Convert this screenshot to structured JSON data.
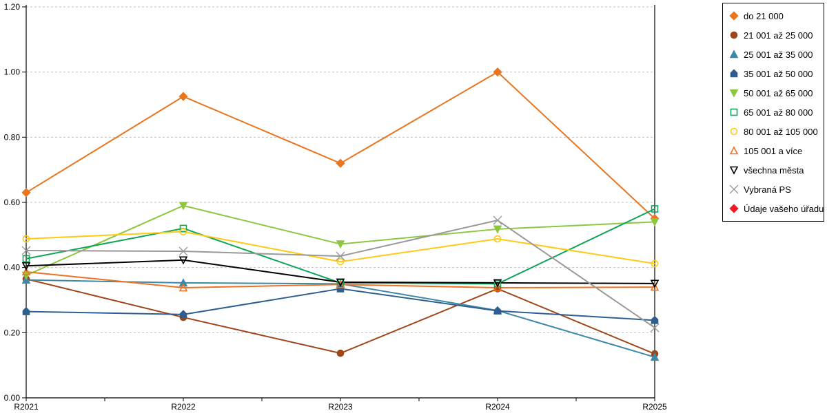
{
  "chart_data": {
    "type": "line",
    "title": "",
    "xlabel": "",
    "ylabel": "",
    "x_categories": [
      "R2021",
      "R2022",
      "R2023",
      "R2024",
      "R2025"
    ],
    "ylim": [
      0.0,
      1.2
    ],
    "y_tick_step": 0.2,
    "y_tick_labels": [
      "0.00",
      "0.20",
      "0.40",
      "0.60",
      "0.80",
      "1.00",
      "1.20"
    ],
    "grid": "horizontal-dashed",
    "gridline_color": "#bfbfbf",
    "legend_position": "top-right-outside",
    "series": [
      {
        "name": "do 21 000",
        "color": "#e8751f",
        "marker": "diamond",
        "filled": true,
        "values": [
          0.63,
          0.925,
          0.72,
          1.0,
          0.55
        ]
      },
      {
        "name": "21 001 až 25 000",
        "color": "#9e4519",
        "marker": "circle",
        "filled": true,
        "values": [
          0.365,
          0.247,
          0.137,
          0.335,
          0.135
        ]
      },
      {
        "name": "25 001 až 35 000",
        "color": "#3c88a8",
        "marker": "triangle-up",
        "filled": true,
        "values": [
          0.362,
          0.353,
          0.35,
          0.268,
          0.125
        ]
      },
      {
        "name": "35 001 až 50 000",
        "color": "#2e5e8e",
        "marker": "pentagon",
        "filled": true,
        "values": [
          0.265,
          0.256,
          0.335,
          0.267,
          0.238
        ]
      },
      {
        "name": "50 001 až 65 000",
        "color": "#8dc63f",
        "marker": "triangle-down",
        "filled": true,
        "values": [
          0.376,
          0.59,
          0.472,
          0.518,
          0.54
        ]
      },
      {
        "name": "65 001 až 80 000",
        "color": "#10a457",
        "marker": "square",
        "filled": false,
        "values": [
          0.427,
          0.52,
          0.353,
          0.35,
          0.58
        ]
      },
      {
        "name": "80 001 až 105 000",
        "color": "#ffc914",
        "marker": "circle",
        "filled": false,
        "values": [
          0.488,
          0.51,
          0.418,
          0.488,
          0.412
        ]
      },
      {
        "name": "105 001 a více",
        "color": "#f07122",
        "marker": "triangle-up",
        "filled": false,
        "values": [
          0.387,
          0.338,
          0.348,
          0.338,
          0.34
        ]
      },
      {
        "name": "všechna města",
        "color": "#000000",
        "marker": "triangle-down",
        "filled": false,
        "values": [
          0.405,
          0.423,
          0.355,
          0.353,
          0.351
        ]
      },
      {
        "name": "Vybraná PS",
        "color": "#999999",
        "marker": "x",
        "filled": false,
        "values": [
          0.452,
          0.45,
          0.435,
          0.545,
          0.215
        ]
      },
      {
        "name": "Údaje vašeho úřadu",
        "color": "#ed1c24",
        "marker": "diamond",
        "filled": true,
        "values": []
      }
    ]
  }
}
